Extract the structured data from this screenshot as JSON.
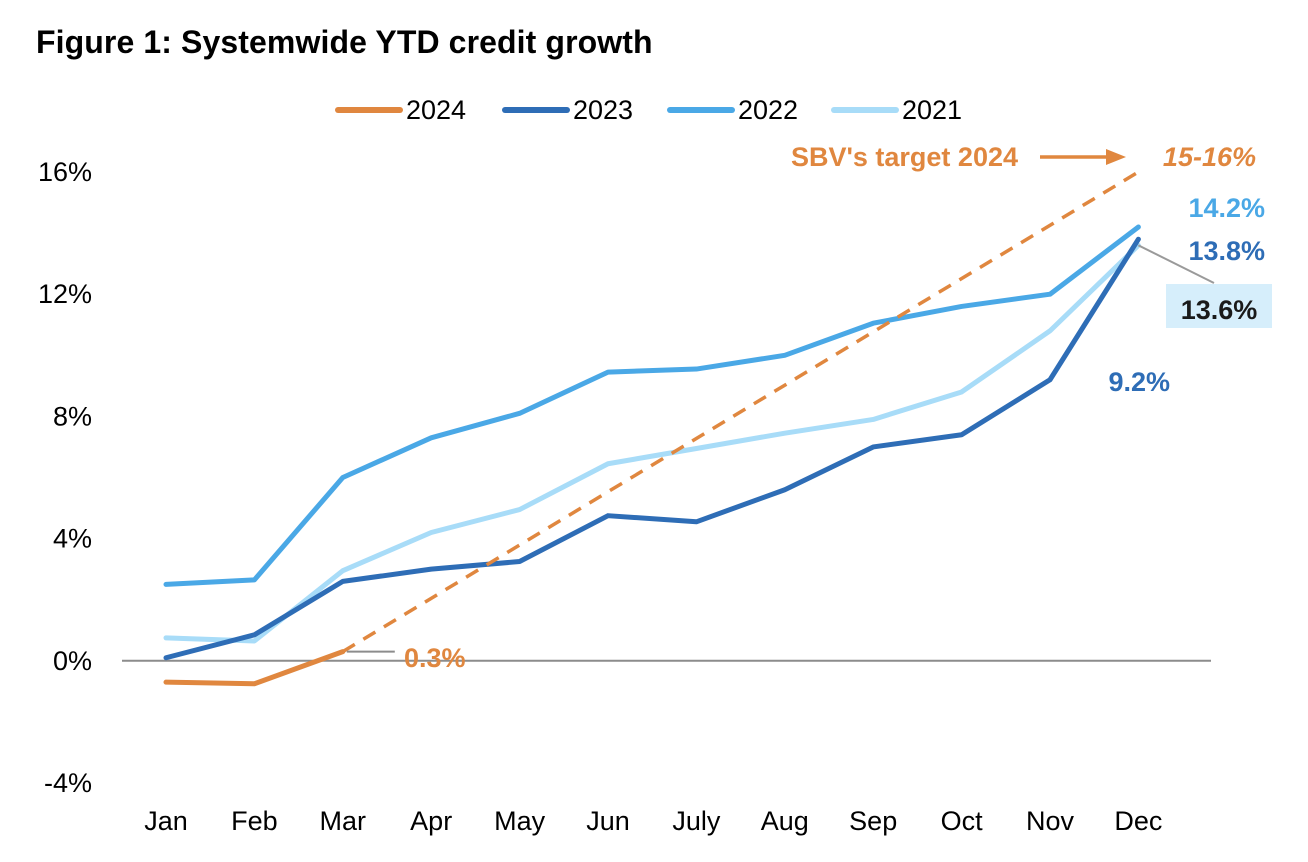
{
  "title": "Figure 1: Systemwide YTD credit growth",
  "chart_data": {
    "type": "line",
    "categories": [
      "Jan",
      "Feb",
      "Mar",
      "Apr",
      "May",
      "Jun",
      "July",
      "Aug",
      "Sep",
      "Oct",
      "Nov",
      "Dec"
    ],
    "ylim": [
      -4,
      16
    ],
    "yticks": [
      -4,
      0,
      4,
      8,
      12,
      16
    ],
    "ytick_labels": [
      "-4%",
      "0%",
      "4%",
      "8%",
      "12%",
      "16%"
    ],
    "legend_position": "top-center",
    "series": [
      {
        "name": "2024",
        "color": "#E0873F",
        "values": [
          -0.7,
          -0.75,
          0.3,
          null,
          null,
          null,
          null,
          null,
          null,
          null,
          null,
          null
        ]
      },
      {
        "name": "2023",
        "color": "#2E6DB6",
        "values": [
          0.1,
          0.85,
          2.6,
          3.0,
          3.25,
          4.75,
          4.55,
          5.6,
          7.0,
          7.4,
          9.2,
          13.8
        ]
      },
      {
        "name": "2022",
        "color": "#4AA8E6",
        "values": [
          2.5,
          2.65,
          6.0,
          7.3,
          8.1,
          9.45,
          9.55,
          10.0,
          11.05,
          11.6,
          12.0,
          14.2
        ]
      },
      {
        "name": "2021",
        "color": "#A8DCF8",
        "values": [
          0.75,
          0.65,
          2.95,
          4.2,
          4.95,
          6.45,
          6.95,
          7.45,
          7.9,
          8.8,
          10.8,
          13.6
        ]
      }
    ],
    "target_line": {
      "label": "SBV's target 2024",
      "value_label": "15-16%",
      "color": "#E0873F",
      "from": {
        "x": "Mar",
        "y": 0.3
      },
      "to": {
        "x": "Dec",
        "y": 16
      }
    },
    "annotations": [
      {
        "text": "0.3%",
        "series": "2024",
        "color": "#E0873F"
      },
      {
        "text": "9.2%",
        "series": "2023",
        "color": "#2E6DB6"
      },
      {
        "text": "14.2%",
        "series": "2022",
        "color": "#4AA8E6"
      },
      {
        "text": "13.8%",
        "series": "2023",
        "color": "#2E6DB6"
      },
      {
        "text": "13.6%",
        "series": "2021",
        "color": "#1a1a1a",
        "background": "#D6EEFB"
      }
    ]
  }
}
